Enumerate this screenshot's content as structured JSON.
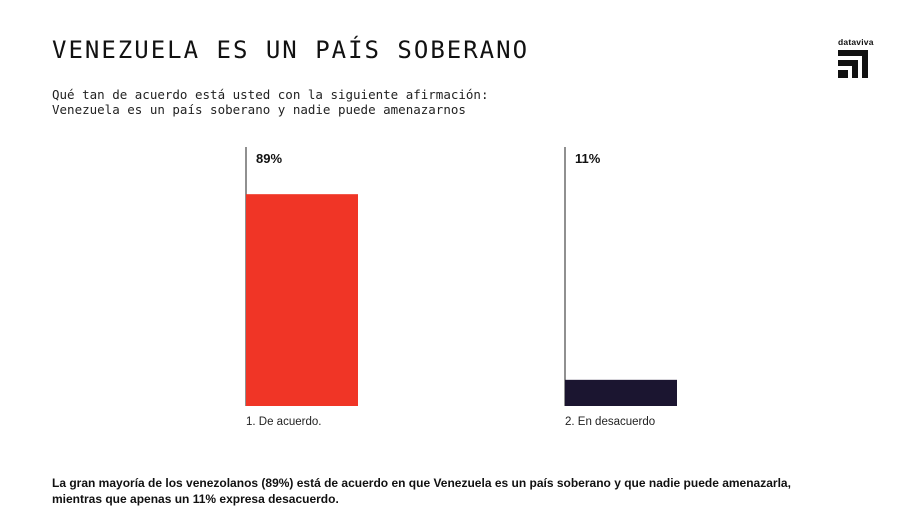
{
  "header": {
    "title": "VENEZUELA ES UN PAÍS SOBERANO",
    "subtitle_lines": [
      "Qué tan de acuerdo está usted con la siguiente afirmación:",
      "Venezuela es un país soberano y nadie puede amenazarnos"
    ]
  },
  "brand": {
    "name": "dataviva",
    "logo_icon": "dataviva-logo-icon"
  },
  "chart_data": {
    "type": "bar",
    "categories": [
      "1.  De acuerdo.",
      "2.  En desacuerdo"
    ],
    "values": [
      89,
      11
    ],
    "value_labels": [
      "89%",
      "11%"
    ],
    "colors": [
      "#f03526",
      "#1b1530"
    ],
    "ylim": [
      0,
      100
    ],
    "grid": false,
    "legend": "none"
  },
  "footnote": {
    "lines": [
      "La gran mayoría de los venezolanos (89%) está de acuerdo en que Venezuela es un país soberano y que nadie puede amenazarla,",
      "mientras que apenas un 11% expresa desacuerdo."
    ]
  }
}
